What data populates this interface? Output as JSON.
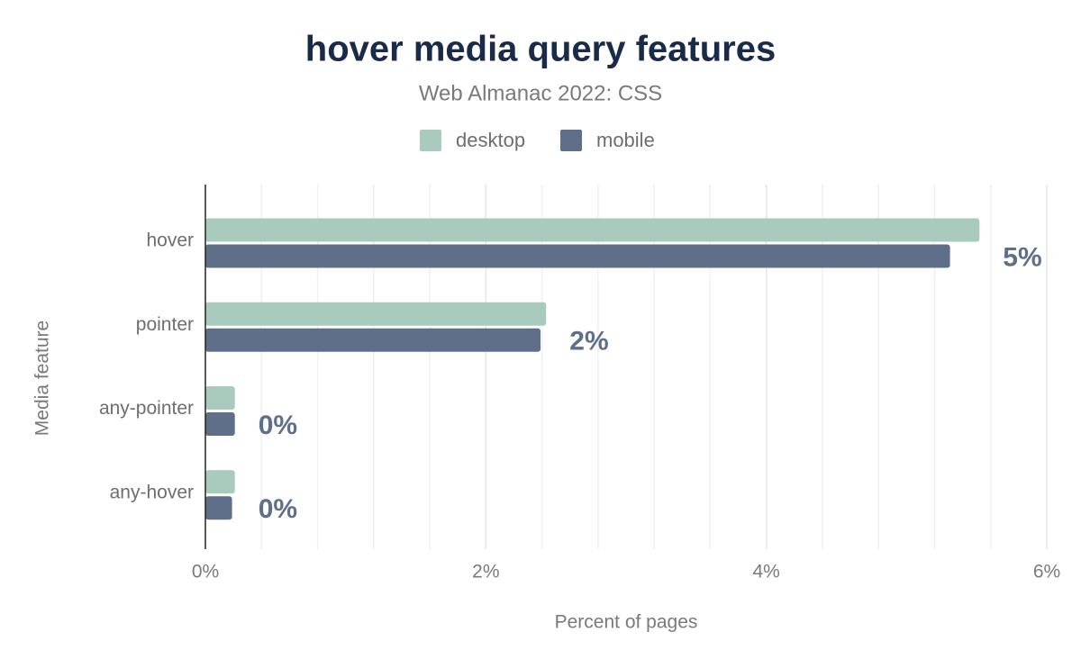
{
  "chart_data": {
    "type": "hbar",
    "title": "hover media query features",
    "subtitle": "Web Almanac 2022: CSS",
    "x_label": "Percent of pages",
    "y_label": "Media feature",
    "categories": [
      "hover",
      "pointer",
      "any-pointer",
      "any-hover"
    ],
    "series": [
      {
        "name": "desktop",
        "color": "#a8cbbd",
        "values": [
          5.52,
          2.43,
          0.21,
          0.21
        ]
      },
      {
        "name": "mobile",
        "color": "#5f6f8a",
        "values": [
          5.31,
          2.39,
          0.21,
          0.19
        ],
        "value_labels": [
          "5%",
          "2%",
          "0%",
          "0%"
        ]
      }
    ],
    "xlim": [
      0,
      6
    ],
    "xticks": [
      {
        "value": 0,
        "label": "0%"
      },
      {
        "value": 2,
        "label": "2%"
      },
      {
        "value": 4,
        "label": "4%"
      },
      {
        "value": 6,
        "label": "6%"
      }
    ],
    "xminor": [
      0.4,
      0.8,
      1.2,
      1.6,
      2.4,
      2.8,
      3.2,
      3.6,
      4.4,
      4.8,
      5.2,
      5.6
    ],
    "grid": true,
    "legend": "top"
  }
}
